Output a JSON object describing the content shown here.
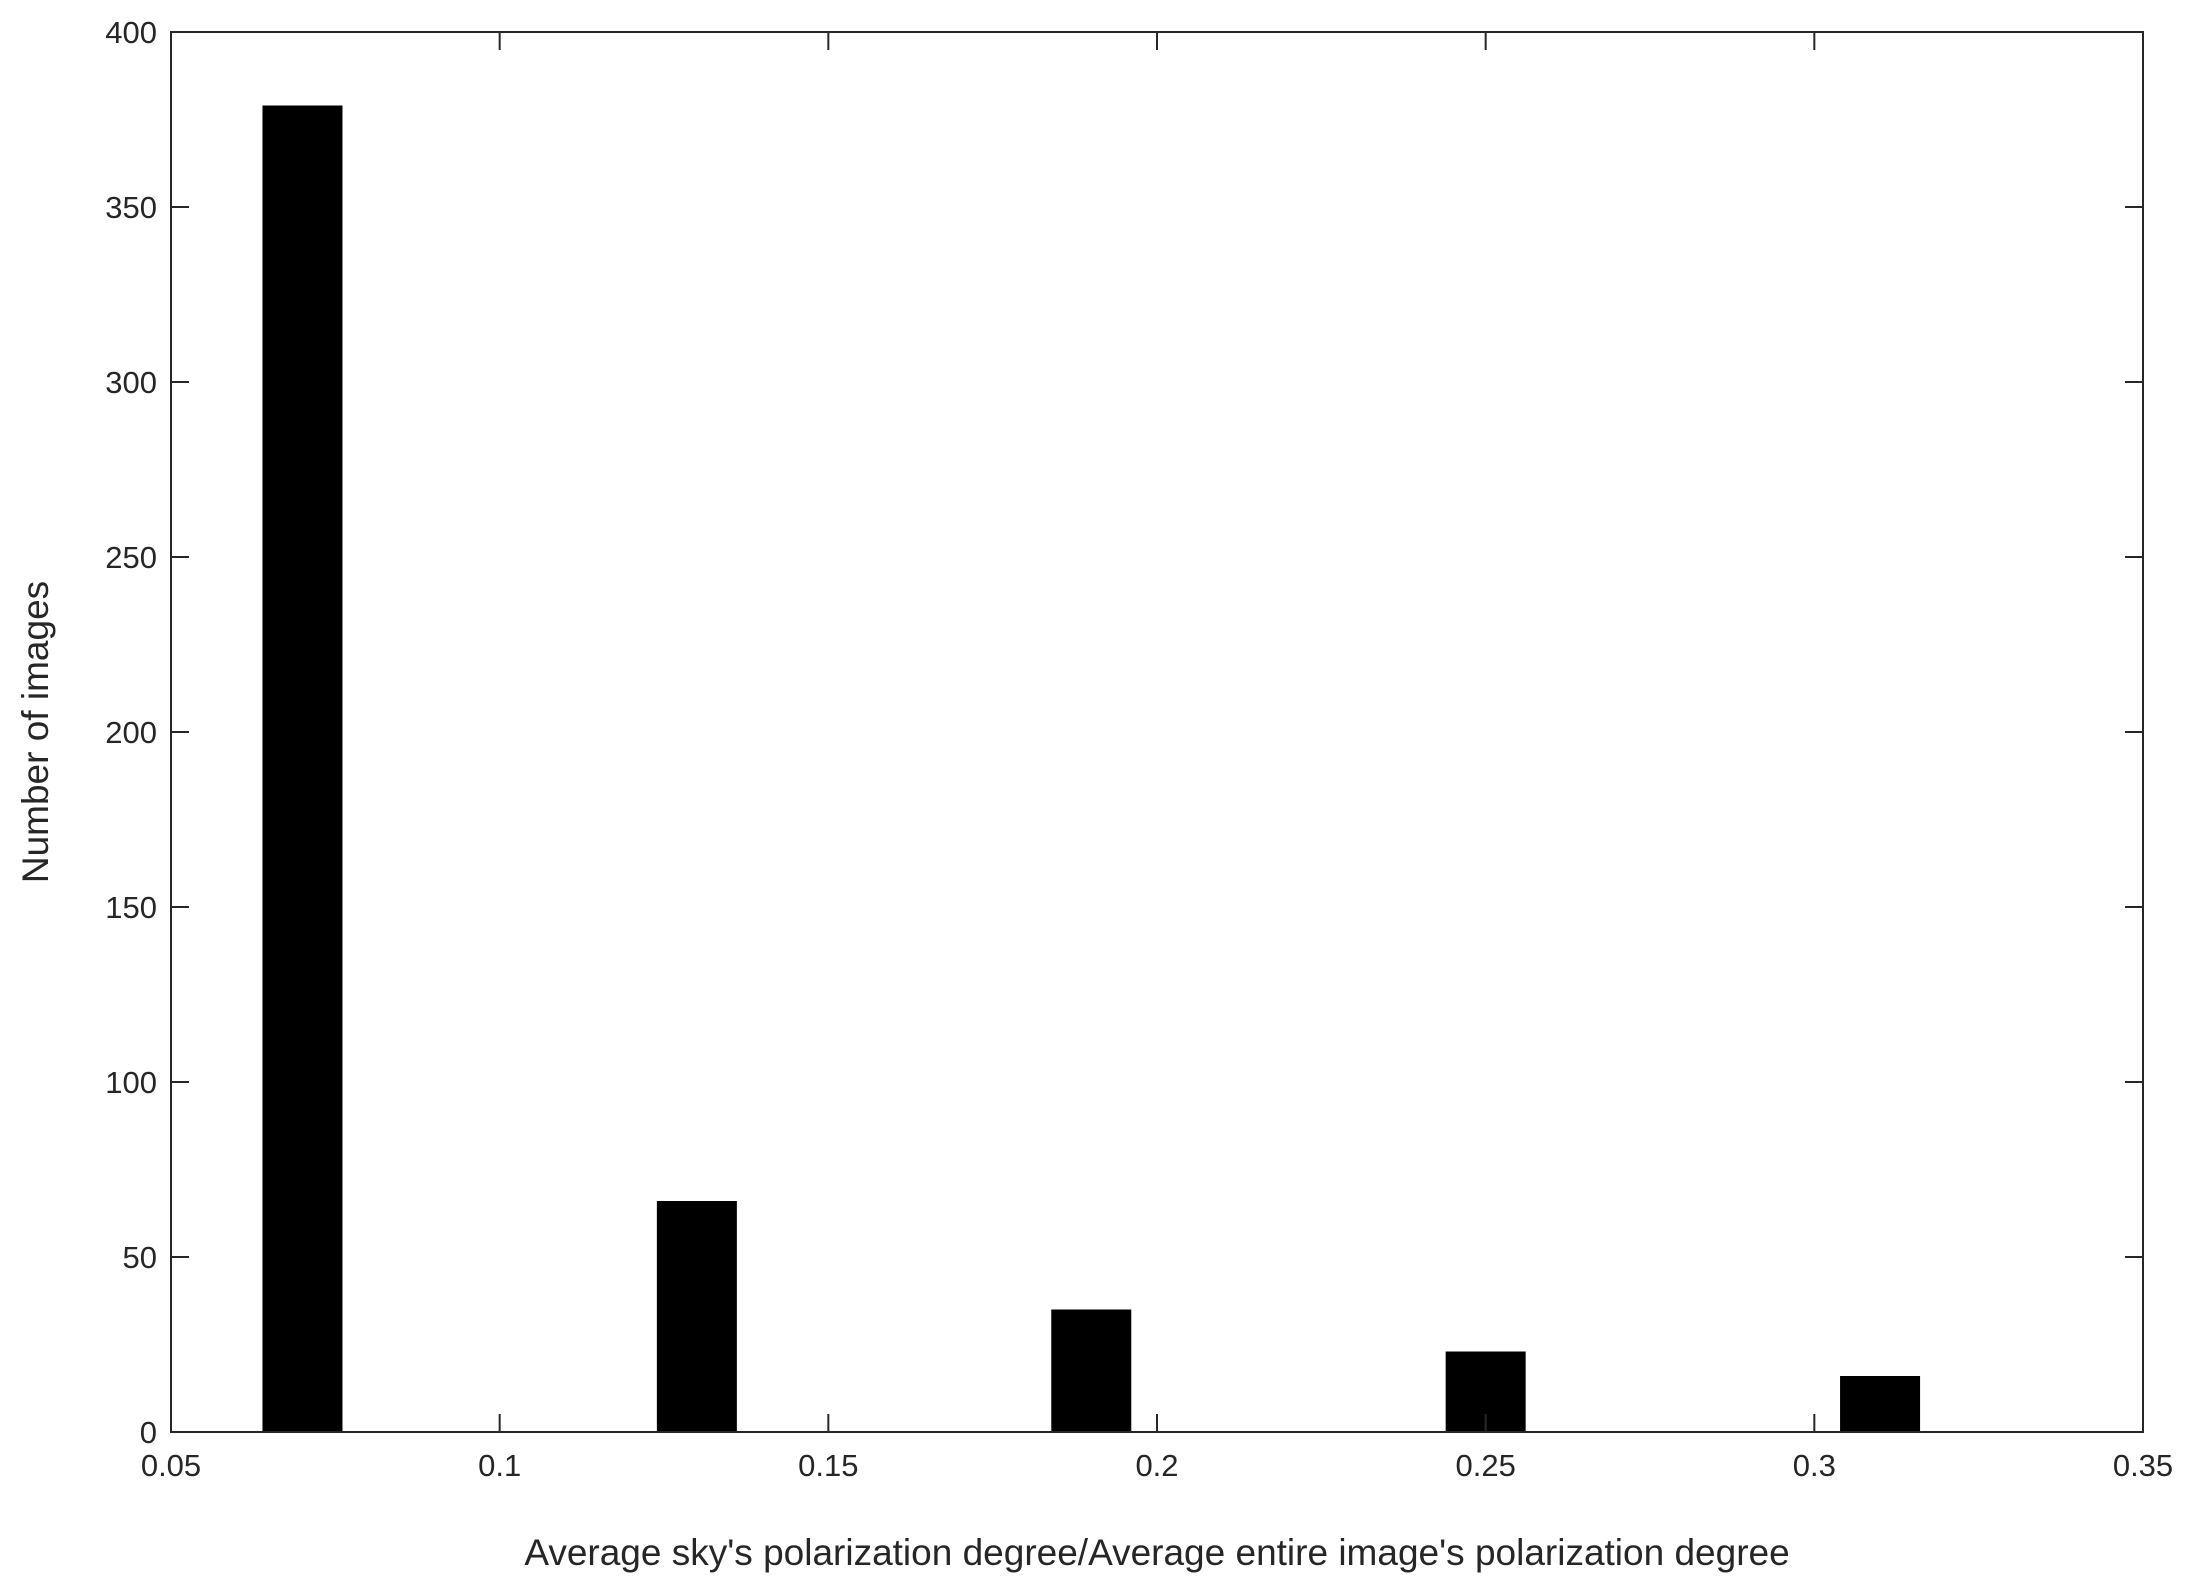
{
  "chart_data": {
    "type": "bar",
    "x_label": "Average sky's polarization degree/Average entire image's polarization degree",
    "y_label": "Number of images",
    "x": [
      0.07,
      0.13,
      0.19,
      0.25,
      0.31
    ],
    "values": [
      379,
      66,
      35,
      23,
      16
    ],
    "color": "#000000",
    "xlim": [
      0.05,
      0.35
    ],
    "xticks": [
      0.05,
      0.1,
      0.15,
      0.2,
      0.25,
      0.3,
      0.35
    ],
    "ylim": [
      0,
      400
    ],
    "yticks": [
      0,
      50,
      100,
      150,
      200,
      250,
      300,
      350,
      400
    ],
    "grid": false
  }
}
